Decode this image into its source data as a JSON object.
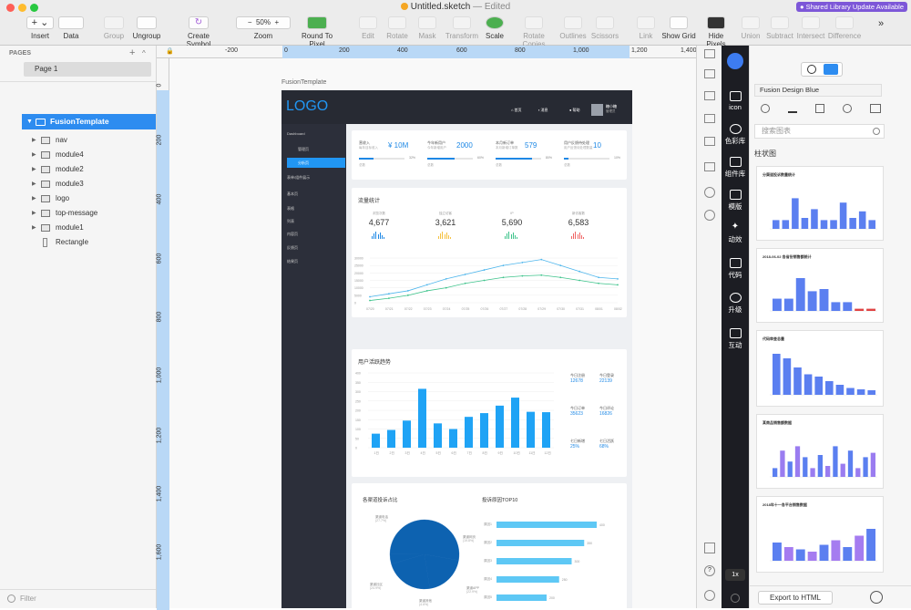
{
  "window": {
    "title": "Untitled.sketch",
    "edited": " — Edited",
    "notice": "● Shared Library Update Available"
  },
  "toolbar": {
    "insert": "Insert",
    "data": "Data",
    "group": "Group",
    "ungroup": "Ungroup",
    "create_symbol": "Create Symbol",
    "zoom": "Zoom",
    "zoom_value": "50%",
    "round": "Round To Pixel",
    "edit": "Edit",
    "rotate": "Rotate",
    "mask": "Mask",
    "transform": "Transform",
    "scale": "Scale",
    "rotate_copies": "Rotate Copies",
    "outlines": "Outlines",
    "scissors": "Scissors",
    "link": "Link",
    "show_grid": "Show Grid",
    "hide_pixels": "Hide Pixels",
    "union": "Union",
    "subtract": "Subtract",
    "intersect": "Intersect",
    "difference": "Difference",
    "more": "»"
  },
  "pages": {
    "header": "PAGES",
    "add": "+",
    "collapse": "^",
    "items": [
      "Page 1"
    ]
  },
  "layers": {
    "artboard": "FusionTemplate",
    "items": [
      "nav",
      "module4",
      "module2",
      "module3",
      "logo",
      "top-message",
      "module1",
      "Rectangle"
    ]
  },
  "filter": {
    "placeholder": "Filter"
  },
  "rulers": {
    "h": [
      "-200",
      "0",
      "200",
      "400",
      "600",
      "800",
      "1,000",
      "1,200",
      "1,400"
    ],
    "v": [
      "0",
      "200",
      "400",
      "600",
      "800",
      "1,000",
      "1,200",
      "1,400",
      "1,600"
    ]
  },
  "artboard": {
    "label": "FusionTemplate",
    "logo": "LOGO",
    "nav": [
      "首页",
      "消息",
      "帮助"
    ],
    "user": "糖小糖",
    "user_role": "管理员",
    "side_menu": [
      "Dashboard",
      "管理页",
      "分析页",
      "表单/组件展示",
      "基本页",
      "表格",
      "列表",
      "内容页",
      "反馈页",
      "结果页"
    ],
    "kpis": [
      {
        "label": "营收入",
        "sub": "每年目标收入",
        "value": "¥ 10M",
        "pct": "32%",
        "foot": "总数"
      },
      {
        "label": "今年新用户",
        "sub": "今年新增用户",
        "value": "2000",
        "pct": "60%",
        "foot": "总数"
      },
      {
        "label": "本月新订单",
        "sub": "本月新增订单数",
        "value": "579",
        "pct": "80%",
        "foot": "总数"
      },
      {
        "label": "用户反馈待处理",
        "sub": "用户反馈待处理数量",
        "value": "10",
        "pct": "10%",
        "foot": "总数"
      }
    ],
    "traffic": {
      "title": "流量统计",
      "stats": [
        {
          "label": "浏览次数",
          "value": "4,677"
        },
        {
          "label": "独立访客",
          "value": "3,621"
        },
        {
          "label": "IP",
          "value": "5,690"
        },
        {
          "label": "新访客数",
          "value": "6,583"
        }
      ],
      "y_ticks": [
        "30000",
        "25000",
        "20000",
        "15000",
        "10000",
        "5000",
        "0"
      ],
      "x_ticks": [
        "07/20",
        "07/21",
        "07/22",
        "07/23",
        "07/24",
        "07/25",
        "07/26",
        "07/27",
        "07/28",
        "07/29",
        "07/30",
        "07/31",
        "08/01",
        "08/02"
      ]
    },
    "activity": {
      "title": "用户活跃趋势",
      "y_ticks": [
        "400",
        "350",
        "300",
        "250",
        "200",
        "150",
        "100",
        "50",
        "0"
      ],
      "x_ticks": [
        "1日",
        "2日",
        "3日",
        "4日",
        "5日",
        "6日",
        "7日",
        "8日",
        "9日",
        "10日",
        "11日",
        "12日"
      ],
      "stats": [
        {
          "label": "今日注册",
          "value": "12678"
        },
        {
          "label": "今日登录",
          "value": "22139"
        },
        {
          "label": "今日订单",
          "value": "35623"
        },
        {
          "label": "今日评论",
          "value": "16826"
        },
        {
          "label": "七日新增",
          "value": "25%"
        },
        {
          "label": "七日活跃",
          "value": "68%"
        }
      ]
    },
    "complaint": {
      "pie_title": "各渠道投诉占比",
      "pie_labels": [
        "渠道电话\n(27.7%)",
        "渠道网页\n(19.8%)",
        "渠道APP\n(22.9%)",
        "渠道其他\n(4.6%)",
        "渠道社区\n(24.9%)"
      ],
      "bar_title": "投诉原因TOP10",
      "bar_labels": [
        "原因1",
        "原因2",
        "原因3",
        "原因4",
        "原因5"
      ],
      "bar_values": [
        "400",
        "350",
        "300",
        "250",
        "200"
      ]
    }
  },
  "inspector": {
    "zoom": "1x"
  },
  "fusion": {
    "tabs": [
      "icon",
      "色彩库",
      "组件库",
      "模版",
      "动效",
      "代码",
      "升级",
      "互动"
    ],
    "library": "Fusion Design Blue",
    "search_placeholder": "搜索图表",
    "section": "柱状图",
    "thumbs": [
      "分渠道投诉数量统计",
      "2018-06-02 各省份销售额统计",
      "代码审查总量",
      "某商品销售额数据",
      "2018年十一各平台销售数据"
    ],
    "export": "Export to HTML"
  },
  "chart_data": [
    {
      "type": "line",
      "title": "流量统计",
      "x": [
        "07/20",
        "07/21",
        "07/22",
        "07/23",
        "07/24",
        "07/25",
        "07/26",
        "07/27",
        "07/28",
        "07/29",
        "07/30",
        "07/31",
        "08/01",
        "08/02"
      ],
      "ylim": [
        0,
        30000
      ],
      "series": [
        {
          "values": [
            4000,
            6000,
            8000,
            12000,
            16000,
            19000,
            22000,
            25000,
            27000,
            29000,
            25000,
            21000,
            17000,
            16000
          ]
        },
        {
          "values": [
            1500,
            3000,
            5000,
            8000,
            10000,
            13000,
            15000,
            17000,
            18000,
            18500,
            17000,
            15000,
            13000,
            12000
          ]
        }
      ]
    },
    {
      "type": "bar",
      "title": "用户活跃趋势",
      "categories": [
        "1日",
        "2日",
        "3日",
        "4日",
        "5日",
        "6日",
        "7日",
        "8日",
        "9日",
        "10日",
        "11日",
        "12日"
      ],
      "values": [
        75,
        95,
        145,
        315,
        130,
        100,
        165,
        185,
        225,
        268,
        192,
        190
      ],
      "ylim": [
        0,
        400
      ]
    },
    {
      "type": "pie",
      "title": "各渠道投诉占比",
      "categories": [
        "渠道电话",
        "渠道网页",
        "渠道APP",
        "渠道其他",
        "渠道社区"
      ],
      "values": [
        27.7,
        19.8,
        22.9,
        4.6,
        24.9
      ]
    },
    {
      "type": "bar",
      "title": "投诉原因TOP10",
      "categories": [
        "原因1",
        "原因2",
        "原因3",
        "原因4",
        "原因5"
      ],
      "values": [
        400,
        350,
        300,
        250,
        200
      ]
    }
  ],
  "colors": {
    "accent": "#1e88e5",
    "selection": "#2d8cf0",
    "purple": "#7d57d8",
    "dark": "#272a33"
  }
}
